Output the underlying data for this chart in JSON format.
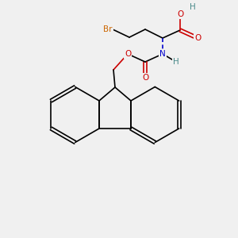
{
  "bg_color": "#f0f0f0",
  "bond_color": "#000000",
  "colors": {
    "O": "#cc0000",
    "N": "#0000cc",
    "Br": "#cc6600",
    "H_teal": "#4a8a8a",
    "C": "#000000"
  },
  "font_size": 7.5,
  "lw": 1.2
}
